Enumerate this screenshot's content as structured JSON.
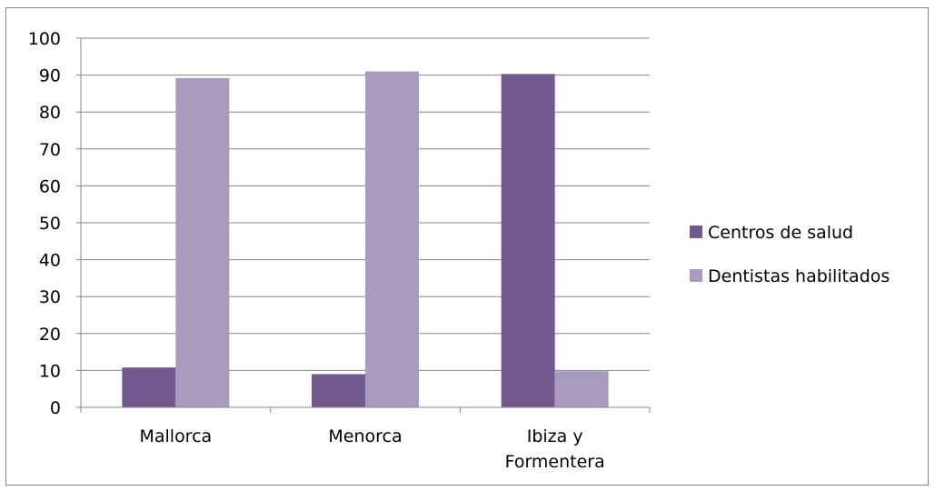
{
  "chart_data": {
    "type": "bar",
    "title": "",
    "xlabel": "",
    "ylabel": "",
    "categories": [
      [
        "Mallorca"
      ],
      [
        "Menorca"
      ],
      [
        "Ibiza y",
        "Formentera"
      ]
    ],
    "series": [
      {
        "name": "Centros de salud",
        "values": [
          10.8,
          9,
          90.3
        ],
        "color": "#725990"
      },
      {
        "name": "Dentistas habilitados",
        "values": [
          89.2,
          91,
          9.8
        ],
        "color": "#a99bbd"
      }
    ],
    "ylim": [
      0,
      100
    ],
    "yticks": [
      0,
      10,
      20,
      30,
      40,
      50,
      60,
      70,
      80,
      90,
      100
    ],
    "grid": true,
    "legend_position": "right"
  }
}
